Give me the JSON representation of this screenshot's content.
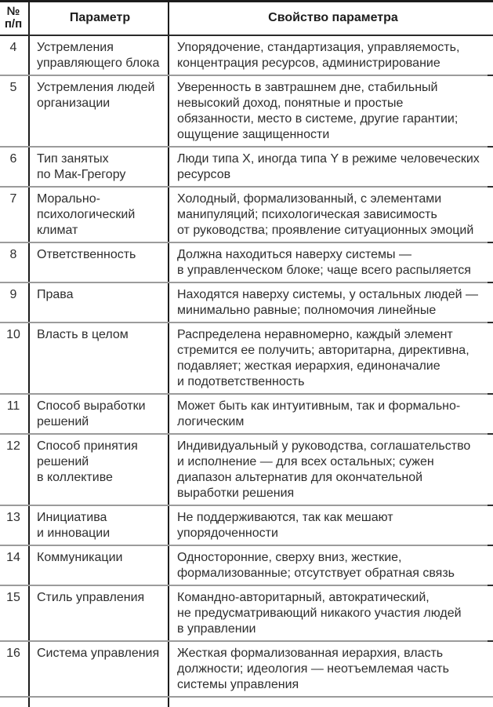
{
  "table": {
    "headers": {
      "num": "№\nп/п",
      "param": "Параметр",
      "property": "Свойство параметра"
    },
    "rows": [
      {
        "num": "4",
        "param": "Устремления\nуправляющего блока",
        "property": "Упорядочение, стандартизация, управляемость,\nконцентрация ресурсов, администрирование"
      },
      {
        "num": "5",
        "param": "Устремления людей\nорганизации",
        "property": "Уверенность в завтрашнем дне, стабильный\nневысокий доход, понятные и простые\nобязанности, место в системе, другие гарантии;\nощущение защищенности"
      },
      {
        "num": "6",
        "param": "Тип занятых\nпо Мак-Грегору",
        "property": "Люди типа X, иногда типа Y в режиме человеческих\nресурсов"
      },
      {
        "num": "7",
        "param": "Морально-\nпсихологический\nклимат",
        "property": "Холодный, формализованный, с элементами\nманипуляций; психологическая зависимость\nот руководства; проявление ситуационных эмоций"
      },
      {
        "num": "8",
        "param": "Ответственность",
        "property": "Должна находиться наверху системы —\nв управленческом блоке; чаще всего распыляется"
      },
      {
        "num": "9",
        "param": "Права",
        "property": "Находятся наверху системы, у остальных людей —\nминимально равные; полномочия линейные"
      },
      {
        "num": "10",
        "param": "Власть в целом",
        "property": "Распределена неравномерно, каждый элемент\nстремится ее получить; авторитарна, директивна,\nподавляет; жесткая иерархия, единоначалие\nи подответственность"
      },
      {
        "num": "11",
        "param": "Способ выработки\nрешений",
        "property": "Может быть как интуитивным, так и формально-\nлогическим"
      },
      {
        "num": "12",
        "param": "Способ принятия\nрешений\nв коллективе",
        "property": "Индивидуальный у руководства, соглашательство\nи исполнение — для всех остальных; сужен\nдиапазон альтернатив для окончательной\nвыработки решения"
      },
      {
        "num": "13",
        "param": "Инициатива\nи инновации",
        "property": "Не поддерживаются, так как мешают\nупорядоченности"
      },
      {
        "num": "14",
        "param": "Коммуникации",
        "property": "Односторонние, сверху вниз, жесткие,\nформализованные; отсутствует обратная связь"
      },
      {
        "num": "15",
        "param": "Стиль управления",
        "property": "Командно-авторитарный, автократический,\nне предусматривающий никакого участия людей\nв управлении"
      },
      {
        "num": "16",
        "param": "Система управления",
        "property": "Жесткая формализованная иерархия, власть\nдолжности; идеология — неотъемлемая часть\nсистемы управления"
      }
    ]
  }
}
